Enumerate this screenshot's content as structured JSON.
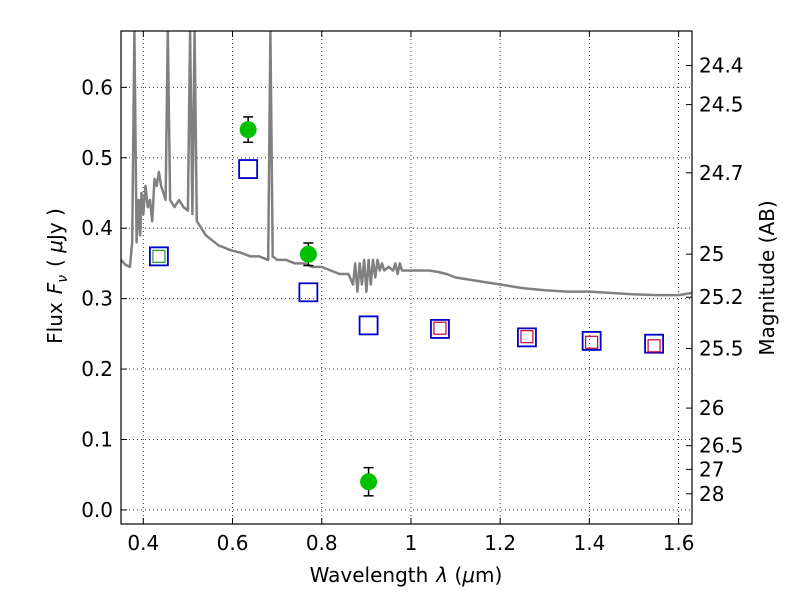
{
  "chart_data": {
    "type": "scatter",
    "xlabel": "Wavelength",
    "xlabel_symbol": "λ",
    "xlabel_unit_open": " (",
    "xlabel_unit_mu": "μ",
    "xlabel_unit_rest": "m)",
    "ylabel": "Flux",
    "ylabel_symbol": "F",
    "ylabel_symbol_sub": "ν",
    "ylabel_unit_open": "( ",
    "ylabel_unit_mu": "μ",
    "ylabel_unit_rest": "Jy )",
    "y2label": "Magnitude (AB)",
    "xlim": [
      0.35,
      1.63
    ],
    "ylim": [
      -0.02,
      0.68
    ],
    "grid": true,
    "x_ticks": [
      {
        "value": 0.4,
        "label": "0.4"
      },
      {
        "value": 0.6,
        "label": "0.6"
      },
      {
        "value": 0.8,
        "label": "0.8"
      },
      {
        "value": 1.0,
        "label": "1"
      },
      {
        "value": 1.2,
        "label": "1.2"
      },
      {
        "value": 1.4,
        "label": "1.4"
      },
      {
        "value": 1.6,
        "label": "1.6"
      }
    ],
    "y_ticks": [
      {
        "value": 0.0,
        "label": "0.0"
      },
      {
        "value": 0.1,
        "label": "0.1"
      },
      {
        "value": 0.2,
        "label": "0.2"
      },
      {
        "value": 0.3,
        "label": "0.3"
      },
      {
        "value": 0.4,
        "label": "0.4"
      },
      {
        "value": 0.5,
        "label": "0.5"
      },
      {
        "value": 0.6,
        "label": "0.6"
      }
    ],
    "mag_ticks": [
      "24.4",
      "24.5",
      "24.7",
      "25",
      "25.2",
      "25.5",
      "26",
      "26.5",
      "27",
      "28"
    ],
    "series": [
      {
        "kind": "spectrum",
        "color": "#808080",
        "x": [
          0.35,
          0.36,
          0.37,
          0.375,
          0.38,
          0.385,
          0.39,
          0.393,
          0.396,
          0.4,
          0.405,
          0.41,
          0.415,
          0.42,
          0.425,
          0.43,
          0.435,
          0.44,
          0.445,
          0.45,
          0.455,
          0.46,
          0.47,
          0.48,
          0.49,
          0.5,
          0.505,
          0.51,
          0.515,
          0.52,
          0.53,
          0.54,
          0.55,
          0.56,
          0.57,
          0.58,
          0.59,
          0.6,
          0.62,
          0.64,
          0.66,
          0.68,
          0.685,
          0.69,
          0.7,
          0.72,
          0.74,
          0.76,
          0.78,
          0.8,
          0.82,
          0.84,
          0.86,
          0.87,
          0.875,
          0.88,
          0.885,
          0.89,
          0.895,
          0.9,
          0.905,
          0.91,
          0.915,
          0.92,
          0.925,
          0.93,
          0.935,
          0.94,
          0.95,
          0.96,
          0.965,
          0.97,
          0.975,
          0.98,
          1.0,
          1.02,
          1.04,
          1.06,
          1.08,
          1.1,
          1.15,
          1.2,
          1.25,
          1.3,
          1.35,
          1.4,
          1.45,
          1.5,
          1.55,
          1.6,
          1.63
        ],
        "y": [
          0.355,
          0.348,
          0.345,
          0.38,
          0.68,
          0.38,
          0.44,
          0.39,
          0.45,
          0.42,
          0.46,
          0.43,
          0.44,
          0.41,
          0.47,
          0.46,
          0.48,
          0.46,
          0.45,
          0.44,
          0.68,
          0.44,
          0.43,
          0.44,
          0.43,
          0.425,
          0.68,
          0.42,
          0.68,
          0.41,
          0.4,
          0.39,
          0.385,
          0.38,
          0.375,
          0.373,
          0.37,
          0.368,
          0.365,
          0.36,
          0.36,
          0.355,
          0.68,
          0.36,
          0.355,
          0.355,
          0.35,
          0.35,
          0.345,
          0.345,
          0.34,
          0.335,
          0.335,
          0.32,
          0.35,
          0.31,
          0.35,
          0.32,
          0.355,
          0.31,
          0.355,
          0.32,
          0.355,
          0.33,
          0.355,
          0.34,
          0.35,
          0.34,
          0.345,
          0.34,
          0.35,
          0.335,
          0.35,
          0.34,
          0.34,
          0.34,
          0.34,
          0.338,
          0.335,
          0.33,
          0.325,
          0.32,
          0.315,
          0.312,
          0.31,
          0.31,
          0.308,
          0.306,
          0.305,
          0.305,
          0.308
        ]
      },
      {
        "kind": "points",
        "marker": "circle",
        "color": "#00c000",
        "x": [
          0.635,
          0.77,
          0.905
        ],
        "y": [
          0.54,
          0.363,
          0.04
        ],
        "yerr": [
          0.018,
          0.016,
          0.02
        ]
      },
      {
        "kind": "points",
        "marker": "square-open",
        "color": "#0000cc",
        "x": [
          0.435,
          0.635,
          0.77,
          0.905,
          1.065,
          1.26,
          1.405,
          1.545
        ],
        "y": [
          0.36,
          0.484,
          0.309,
          0.262,
          0.257,
          0.245,
          0.24,
          0.236
        ]
      },
      {
        "kind": "points",
        "marker": "square-open-small",
        "color": "#2a9a2a",
        "x": [
          0.435
        ],
        "y": [
          0.36
        ]
      },
      {
        "kind": "points",
        "marker": "square-open-small",
        "color": "#cc0033",
        "x": [
          1.065,
          1.26,
          1.405,
          1.545
        ],
        "y": [
          0.258,
          0.246,
          0.238,
          0.233
        ]
      }
    ]
  }
}
